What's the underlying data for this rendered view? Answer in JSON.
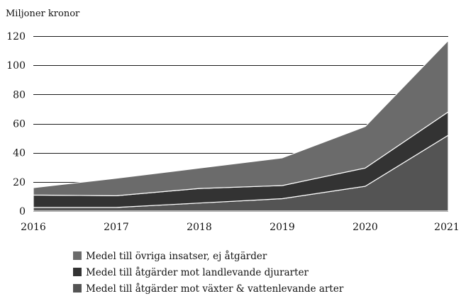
{
  "chart_data": {
    "type": "area",
    "stacked": true,
    "title": "",
    "xlabel": "",
    "ylabel": "",
    "unit_label": "Miljoner kronor",
    "x": [
      2016,
      2017,
      2018,
      2019,
      2020,
      2021
    ],
    "x_tick_labels": [
      "2016",
      "2017",
      "2018",
      "2019",
      "2020",
      "2021"
    ],
    "ylim": [
      0,
      120
    ],
    "y_ticks": [
      0,
      20,
      40,
      60,
      80,
      100,
      120
    ],
    "y_tick_labels": [
      "0",
      "20",
      "40",
      "60",
      "80",
      "100",
      "120"
    ],
    "grid": "horizontal",
    "legend_position": "bottom",
    "series": [
      {
        "name": "Medel till åtgärder mot växter & vattenlevande arter",
        "color": "#545454",
        "values": [
          2.5,
          2.5,
          5.5,
          8.5,
          17,
          52
        ]
      },
      {
        "name": "Medel till åtgärder mot landlevande djurarter",
        "color": "#333333",
        "values": [
          8.5,
          8,
          10,
          9,
          12.5,
          16
        ]
      },
      {
        "name": "Medel till övriga insatser, ej åtgärder",
        "color": "#6b6b6b",
        "values": [
          5,
          12,
          14,
          19,
          28.5,
          49
        ]
      }
    ],
    "legend_order": [
      2,
      1,
      0
    ]
  }
}
